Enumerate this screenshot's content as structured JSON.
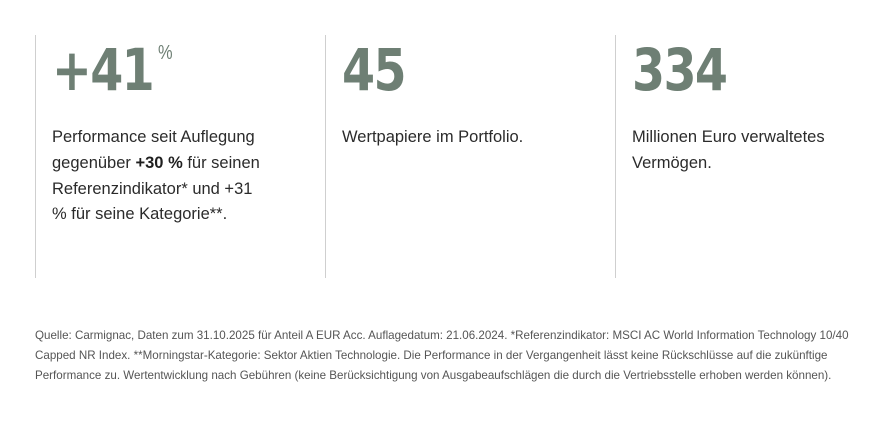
{
  "stats": [
    {
      "value": "+41",
      "unit": "%",
      "desc_before": "Performance seit Auflegung gegenüber ",
      "desc_bold": "+30 %",
      "desc_after": " für seinen Referenzindikator* und +31 % für seine Kategorie**."
    },
    {
      "value": "45",
      "desc": "Wertpapiere im Portfolio."
    },
    {
      "value": "334",
      "desc": "Millionen Euro verwaltetes Vermögen."
    }
  ],
  "footnote": "Quelle: Carmignac, Daten zum 31.10.2025 für Anteil A EUR Acc. Auflagedatum: 21.06.2024. *Referenzindikator: MSCI AC World Information Technology 10/40 Capped NR Index. **Morningstar-Kategorie: Sektor Aktien Technologie. Die Performance in der Vergangenheit lässt keine Rückschlüsse auf die zukünftige Performance zu. Wertentwicklung nach Gebühren (keine Berücksichtigung von Ausgabeaufschlägen die durch die Vertriebsstelle erhoben werden können).",
  "colors": {
    "accent": "#6e7f74",
    "divider": "#cfcfcf",
    "text": "#2b2b2b",
    "footnote": "#555555"
  }
}
